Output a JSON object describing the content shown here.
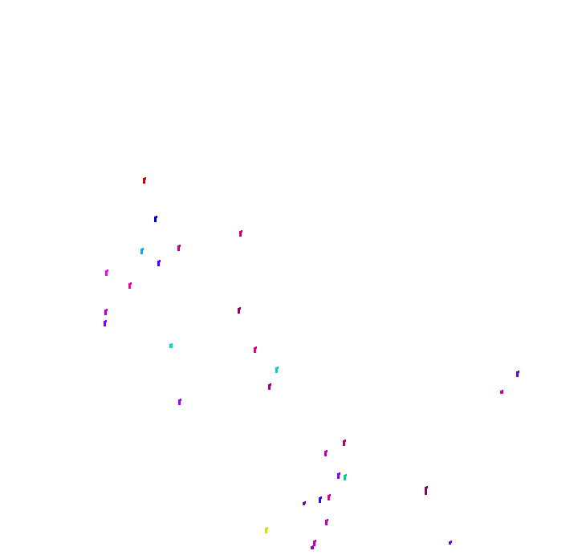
{
  "canvas": {
    "background": "#ffffff"
  },
  "marks": [
    {
      "color": "#d00000"
    },
    {
      "color": "#0000cc"
    },
    {
      "color": "#c00080"
    },
    {
      "color": "#c00080"
    },
    {
      "color": "#00aaff"
    },
    {
      "color": "#5000ff"
    },
    {
      "color": "#ff00ff"
    },
    {
      "color": "#ff00a0"
    },
    {
      "color": "#c000c0"
    },
    {
      "color": "#8000ff"
    },
    {
      "color": "#900060"
    },
    {
      "color": "#00e0c0"
    },
    {
      "color": "#e00080"
    },
    {
      "color": "#00d0d0"
    },
    {
      "color": "#a00080"
    },
    {
      "color": "#6000ff"
    },
    {
      "color": "#d000a0"
    },
    {
      "color": "#a000ff"
    },
    {
      "color": "#c00060"
    },
    {
      "color": "#c000c0"
    },
    {
      "color": "#8000ff"
    },
    {
      "color": "#00d090"
    },
    {
      "color": "#900050"
    },
    {
      "color": "#e00090"
    },
    {
      "color": "#4000ff"
    },
    {
      "color": "#8000c0"
    },
    {
      "color": "#c000c0"
    },
    {
      "color": "#d0e000"
    },
    {
      "color": "#c000c0"
    },
    {
      "color": "#a000c0"
    },
    {
      "color": "#6000ff"
    }
  ]
}
